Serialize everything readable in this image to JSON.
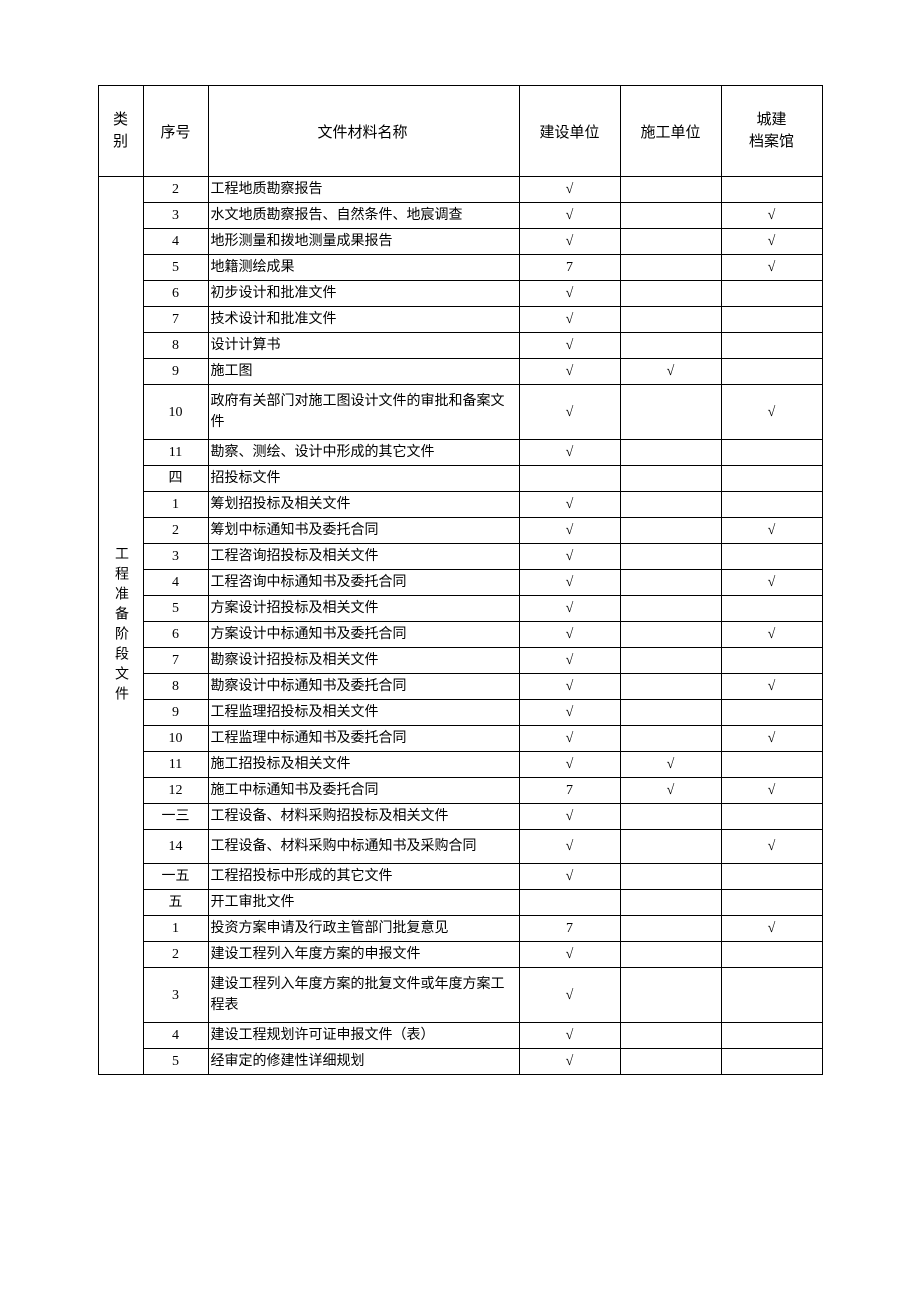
{
  "headers": {
    "category": "类别",
    "seq": "序号",
    "name": "文件材料名称",
    "unit1": "建设单位",
    "unit2": "施工单位",
    "unit3": "城建\n档案馆"
  },
  "category_label": "工程准备阶段文件",
  "check": "√",
  "rows": [
    {
      "seq": "2",
      "name": "工程地质勘察报告",
      "u1": "√",
      "u2": "",
      "u3": ""
    },
    {
      "seq": "3",
      "name": "水文地质勘察报告、自然条件、地宸调查",
      "u1": "√",
      "u2": "",
      "u3": "√"
    },
    {
      "seq": "4",
      "name": "地形测量和拨地测量成果报告",
      "u1": "√",
      "u2": "",
      "u3": "√"
    },
    {
      "seq": "5",
      "name": "地籍测绘成果",
      "u1": "7",
      "u2": "",
      "u3": "√"
    },
    {
      "seq": "6",
      "name": "初步设计和批准文件",
      "u1": "√",
      "u2": "",
      "u3": ""
    },
    {
      "seq": "7",
      "name": "技术设计和批准文件",
      "u1": "√",
      "u2": "",
      "u3": ""
    },
    {
      "seq": "8",
      "name": "设计计算书",
      "u1": "√",
      "u2": "",
      "u3": ""
    },
    {
      "seq": "9",
      "name": "施工图",
      "u1": "√",
      "u2": "√",
      "u3": ""
    },
    {
      "seq": "10",
      "name": "政府有关部门对施工图设计文件的审批和备案文件",
      "u1": "√",
      "u2": "",
      "u3": "√",
      "tall": true
    },
    {
      "seq": "11",
      "name": "勘察、测绘、设计中形成的其它文件",
      "u1": "√",
      "u2": "",
      "u3": ""
    },
    {
      "seq": "四",
      "name": "招投标文件",
      "u1": "",
      "u2": "",
      "u3": ""
    },
    {
      "seq": "1",
      "name": "筹划招投标及相关文件",
      "u1": "√",
      "u2": "",
      "u3": ""
    },
    {
      "seq": "2",
      "name": "筹划中标通知书及委托合同",
      "u1": "√",
      "u2": "",
      "u3": "√"
    },
    {
      "seq": "3",
      "name": "工程咨询招投标及相关文件",
      "u1": "√",
      "u2": "",
      "u3": ""
    },
    {
      "seq": "4",
      "name": "工程咨询中标通知书及委托合同",
      "u1": "√",
      "u2": "",
      "u3": "√"
    },
    {
      "seq": "5",
      "name": "方案设计招投标及相关文件",
      "u1": "√",
      "u2": "",
      "u3": ""
    },
    {
      "seq": "6",
      "name": "方案设计中标通知书及委托合同",
      "u1": "√",
      "u2": "",
      "u3": "√"
    },
    {
      "seq": "7",
      "name": "勘察设计招投标及相关文件",
      "u1": "√",
      "u2": "",
      "u3": ""
    },
    {
      "seq": "8",
      "name": "勘察设计中标通知书及委托合同",
      "u1": "√",
      "u2": "",
      "u3": "√"
    },
    {
      "seq": "9",
      "name": "工程监理招投标及相关文件",
      "u1": "√",
      "u2": "",
      "u3": ""
    },
    {
      "seq": "10",
      "name": "工程监理中标通知书及委托合同",
      "u1": "√",
      "u2": "",
      "u3": "√"
    },
    {
      "seq": "11",
      "name": "施工招投标及相关文件",
      "u1": "√",
      "u2": "√",
      "u3": ""
    },
    {
      "seq": "12",
      "name": "施工中标通知书及委托合同",
      "u1": "7",
      "u2": "√",
      "u3": "√"
    },
    {
      "seq": "一三",
      "name": "工程设备、材料采购招投标及相关文件",
      "u1": "√",
      "u2": "",
      "u3": ""
    },
    {
      "seq": "14",
      "name": "工程设备、材料采购中标通知书及采购合同",
      "u1": "√",
      "u2": "",
      "u3": "√",
      "tall": true
    },
    {
      "seq": "一五",
      "name": "工程招投标中形成的其它文件",
      "u1": "√",
      "u2": "",
      "u3": ""
    },
    {
      "seq": "五",
      "name": "开工审批文件",
      "u1": "",
      "u2": "",
      "u3": ""
    },
    {
      "seq": "1",
      "name": "投资方案申请及行政主管部门批复意见",
      "u1": "7",
      "u2": "",
      "u3": "√"
    },
    {
      "seq": "2",
      "name": "建设工程列入年度方案的申报文件",
      "u1": "√",
      "u2": "",
      "u3": ""
    },
    {
      "seq": "3",
      "name": "建设工程列入年度方案的批复文件或年度方案工程表",
      "u1": "√",
      "u2": "",
      "u3": "",
      "tall": true
    },
    {
      "seq": "4",
      "name": "建设工程规划许可证申报文件（表）",
      "u1": "√",
      "u2": "",
      "u3": ""
    },
    {
      "seq": "5",
      "name": "经审定的修建性详细规划",
      "u1": "√",
      "u2": "",
      "u3": ""
    }
  ]
}
